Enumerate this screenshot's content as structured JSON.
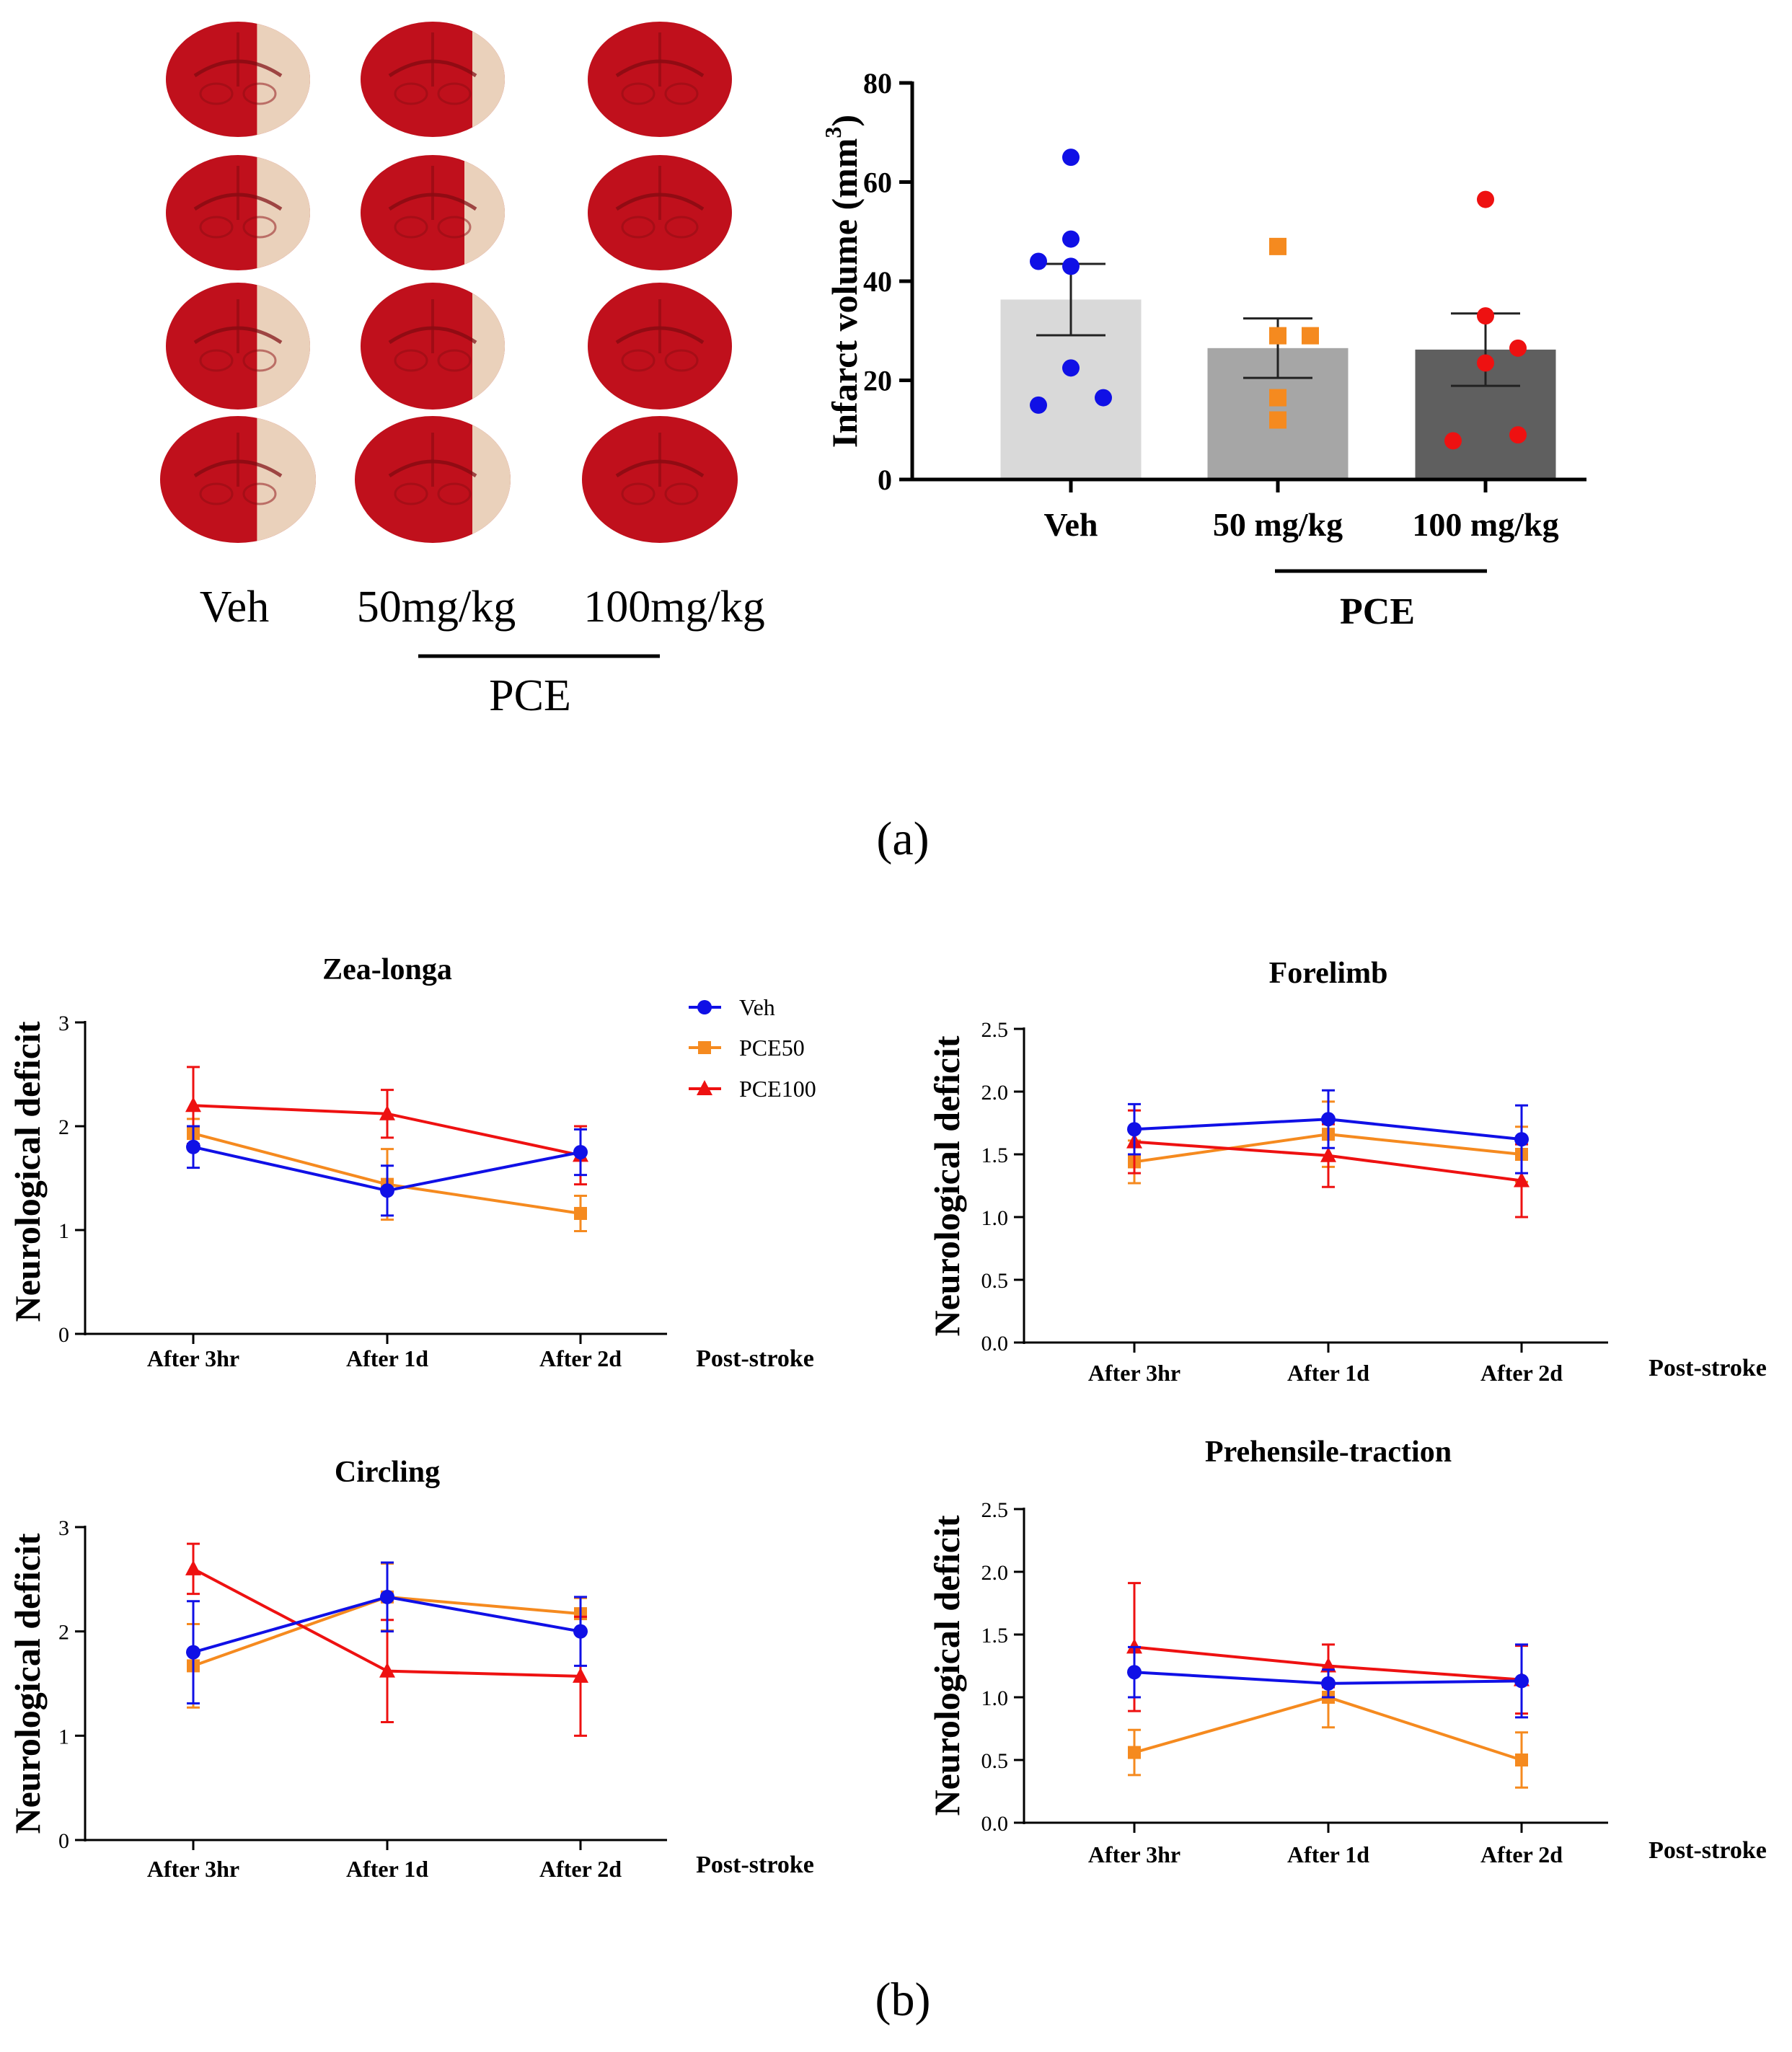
{
  "panel_labels": {
    "a": "(a)",
    "b": "(b)"
  },
  "tissue_panel": {
    "columns": [
      "Veh",
      "50mg/kg",
      "100mg/kg"
    ],
    "group_label": "PCE",
    "rows": 4
  },
  "colors": {
    "veh": "#1010e6",
    "pce50": "#f58a1f",
    "pce100": "#ee1111",
    "bar_veh": "#d9d9d9",
    "bar_50": "#a6a6a6",
    "bar_100": "#5f5f5f",
    "tissue_red": "#c0101c",
    "tissue_pale": "#ecdcc4"
  },
  "chart_data": [
    {
      "id": "infarct",
      "type": "bar",
      "ylabel": "Infarct volume (mm",
      "ylabel_sup": "3",
      "ylabel_close": ")",
      "ylim": [
        0,
        80
      ],
      "yticks": [
        0,
        20,
        40,
        60,
        80
      ],
      "categories": [
        "Veh",
        "50 mg/kg",
        "100 mg/kg"
      ],
      "group_label": "PCE",
      "values": [
        36.3,
        26.5,
        26.2
      ],
      "sem": [
        7.2,
        6.0,
        7.3
      ],
      "points": [
        [
          65,
          48.5,
          44,
          43,
          22.5,
          15,
          16.5
        ],
        [
          47,
          29,
          29,
          16.5,
          12
        ],
        [
          56.5,
          33,
          26.5,
          23.5,
          9,
          7.8
        ]
      ]
    },
    {
      "id": "zea",
      "type": "line",
      "title": "Zea-longa",
      "ylabel": "Neurological deficit",
      "xlabel_side": "Post-stroke",
      "x": [
        "After 3hr",
        "After 1d",
        "After 2d"
      ],
      "ylim": [
        0,
        3
      ],
      "yticks": [
        "0",
        "1",
        "2",
        "3"
      ],
      "legend": [
        "Veh",
        "PCE50",
        "PCE100"
      ],
      "series": [
        {
          "name": "Veh",
          "values": [
            1.8,
            1.38,
            1.75
          ],
          "err": [
            0.2,
            0.24,
            0.22
          ]
        },
        {
          "name": "PCE50",
          "values": [
            1.93,
            1.44,
            1.16
          ],
          "err": [
            0.14,
            0.34,
            0.17
          ]
        },
        {
          "name": "PCE100",
          "values": [
            2.2,
            2.12,
            1.72
          ],
          "err": [
            0.37,
            0.23,
            0.28
          ]
        }
      ]
    },
    {
      "id": "forelimb",
      "type": "line",
      "title": "Forelimb",
      "ylabel": "Neurological deficit",
      "xlabel_side": "Post-stroke",
      "x": [
        "After 3hr",
        "After 1d",
        "After 2d"
      ],
      "ylim": [
        0,
        2.5
      ],
      "yticks": [
        "0.0",
        "0.5",
        "1.0",
        "1.5",
        "2.0",
        "2.5"
      ],
      "series": [
        {
          "name": "Veh",
          "values": [
            1.7,
            1.78,
            1.62
          ],
          "err": [
            0.2,
            0.23,
            0.27
          ]
        },
        {
          "name": "PCE50",
          "values": [
            1.44,
            1.66,
            1.5
          ],
          "err": [
            0.17,
            0.26,
            0.22
          ]
        },
        {
          "name": "PCE100",
          "values": [
            1.6,
            1.49,
            1.29
          ],
          "err": [
            0.25,
            0.25,
            0.29
          ]
        }
      ]
    },
    {
      "id": "circling",
      "type": "line",
      "title": "Circling",
      "ylabel": "Neurological deficit",
      "xlabel_side": "Post-stroke",
      "x": [
        "After 3hr",
        "After 1d",
        "After 2d"
      ],
      "ylim": [
        0,
        3
      ],
      "yticks": [
        "0",
        "1",
        "2",
        "3"
      ],
      "series": [
        {
          "name": "Veh",
          "values": [
            1.8,
            2.33,
            2.0
          ],
          "err": [
            0.49,
            0.33,
            0.33
          ]
        },
        {
          "name": "PCE50",
          "values": [
            1.67,
            2.33,
            2.17
          ],
          "err": [
            0.4,
            0.32,
            0.15
          ]
        },
        {
          "name": "PCE100",
          "values": [
            2.6,
            1.62,
            1.57
          ],
          "err": [
            0.24,
            0.49,
            0.57
          ]
        }
      ]
    },
    {
      "id": "prehensile",
      "type": "line",
      "title": "Prehensile-traction",
      "ylabel": "Neurological deficit",
      "xlabel_side": "Post-stroke",
      "x": [
        "After 3hr",
        "After 1d",
        "After 2d"
      ],
      "ylim": [
        0,
        2.5
      ],
      "yticks": [
        "0.0",
        "0.5",
        "1.0",
        "1.5",
        "2.0",
        "2.5"
      ],
      "series": [
        {
          "name": "Veh",
          "values": [
            1.2,
            1.11,
            1.13
          ],
          "err": [
            0.2,
            0.11,
            0.29
          ]
        },
        {
          "name": "PCE50",
          "values": [
            0.56,
            1.0,
            0.5
          ],
          "err": [
            0.18,
            0.24,
            0.22
          ]
        },
        {
          "name": "PCE100",
          "values": [
            1.4,
            1.25,
            1.14
          ],
          "err": [
            0.51,
            0.17,
            0.27
          ]
        }
      ]
    }
  ]
}
